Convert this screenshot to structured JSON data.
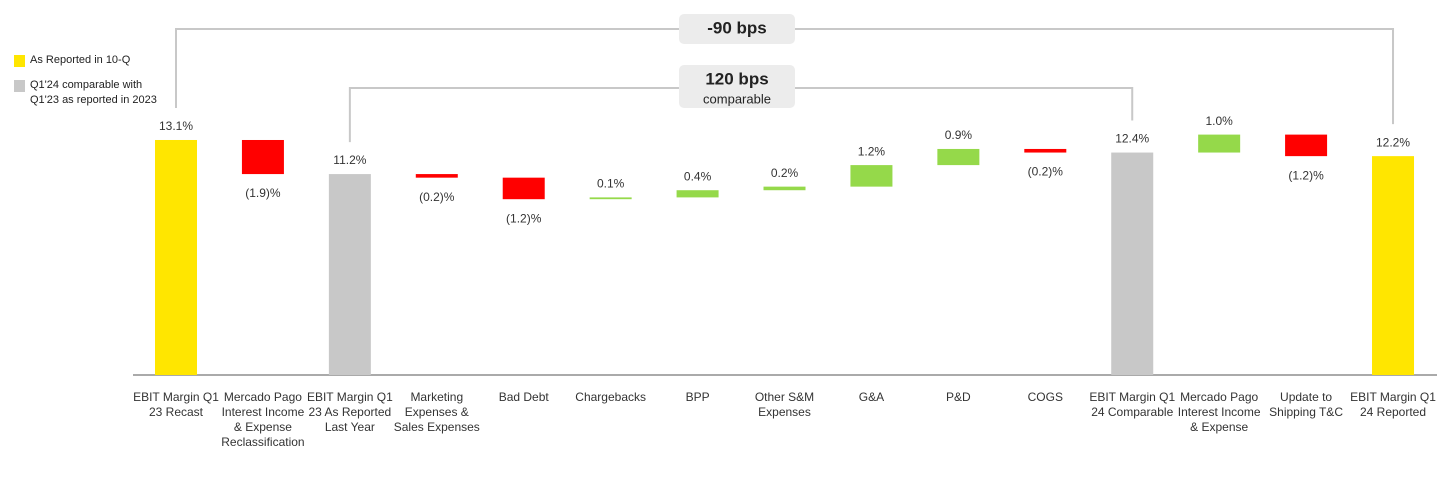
{
  "chart_data": {
    "type": "waterfall",
    "categories": [
      "EBIT Margin Q1 23 Recast",
      "Mercado Pago Interest Income & Expense Reclassification",
      "EBIT Margin Q1 23 As Reported Last Year",
      "Marketing Expenses & Sales Expenses",
      "Bad Debt",
      "Chargebacks",
      "BPP",
      "Other S&M Expenses",
      "G&A",
      "P&D",
      "COGS",
      "EBIT Margin Q1 24 Comparable",
      "Mercado Pago Interest Income & Expense",
      "Update to Shipping T&C",
      "EBIT Margin Q1 24 Reported"
    ],
    "values": [
      13.1,
      -1.9,
      11.2,
      -0.2,
      -1.2,
      0.1,
      0.4,
      0.2,
      1.2,
      0.9,
      -0.2,
      12.4,
      1.0,
      -1.2,
      12.2
    ],
    "value_labels": [
      "13.1%",
      "(1.9)%",
      "11.2%",
      "(0.2)%",
      "(1.2)%",
      "0.1%",
      "0.4%",
      "0.2%",
      "1.2%",
      "0.9%",
      "(0.2)%",
      "12.4%",
      "1.0%",
      "(1.2)%",
      "12.2%"
    ],
    "measure": [
      "absolute",
      "relative",
      "absolute",
      "relative",
      "relative",
      "relative",
      "relative",
      "relative",
      "relative",
      "relative",
      "relative",
      "absolute",
      "relative",
      "relative",
      "absolute"
    ],
    "colors": [
      "#FFE600",
      "#FF0000",
      "#C8C8C8",
      "#FF0000",
      "#FF0000",
      "#95D94A",
      "#95D94A",
      "#95D94A",
      "#95D94A",
      "#95D94A",
      "#FF0000",
      "#C8C8C8",
      "#95D94A",
      "#FF0000",
      "#FFE600"
    ],
    "ylim": [
      0,
      14
    ],
    "legend": [
      {
        "name": "As Reported in 10-Q",
        "color": "#FFE600"
      },
      {
        "name": "Q1'24 comparable with Q1'23 as reported in 2023",
        "color": "#C8C8C8"
      }
    ],
    "annotations": [
      {
        "text": "-90 bps"
      },
      {
        "text": "120 bps",
        "subtext": "comparable"
      }
    ]
  }
}
